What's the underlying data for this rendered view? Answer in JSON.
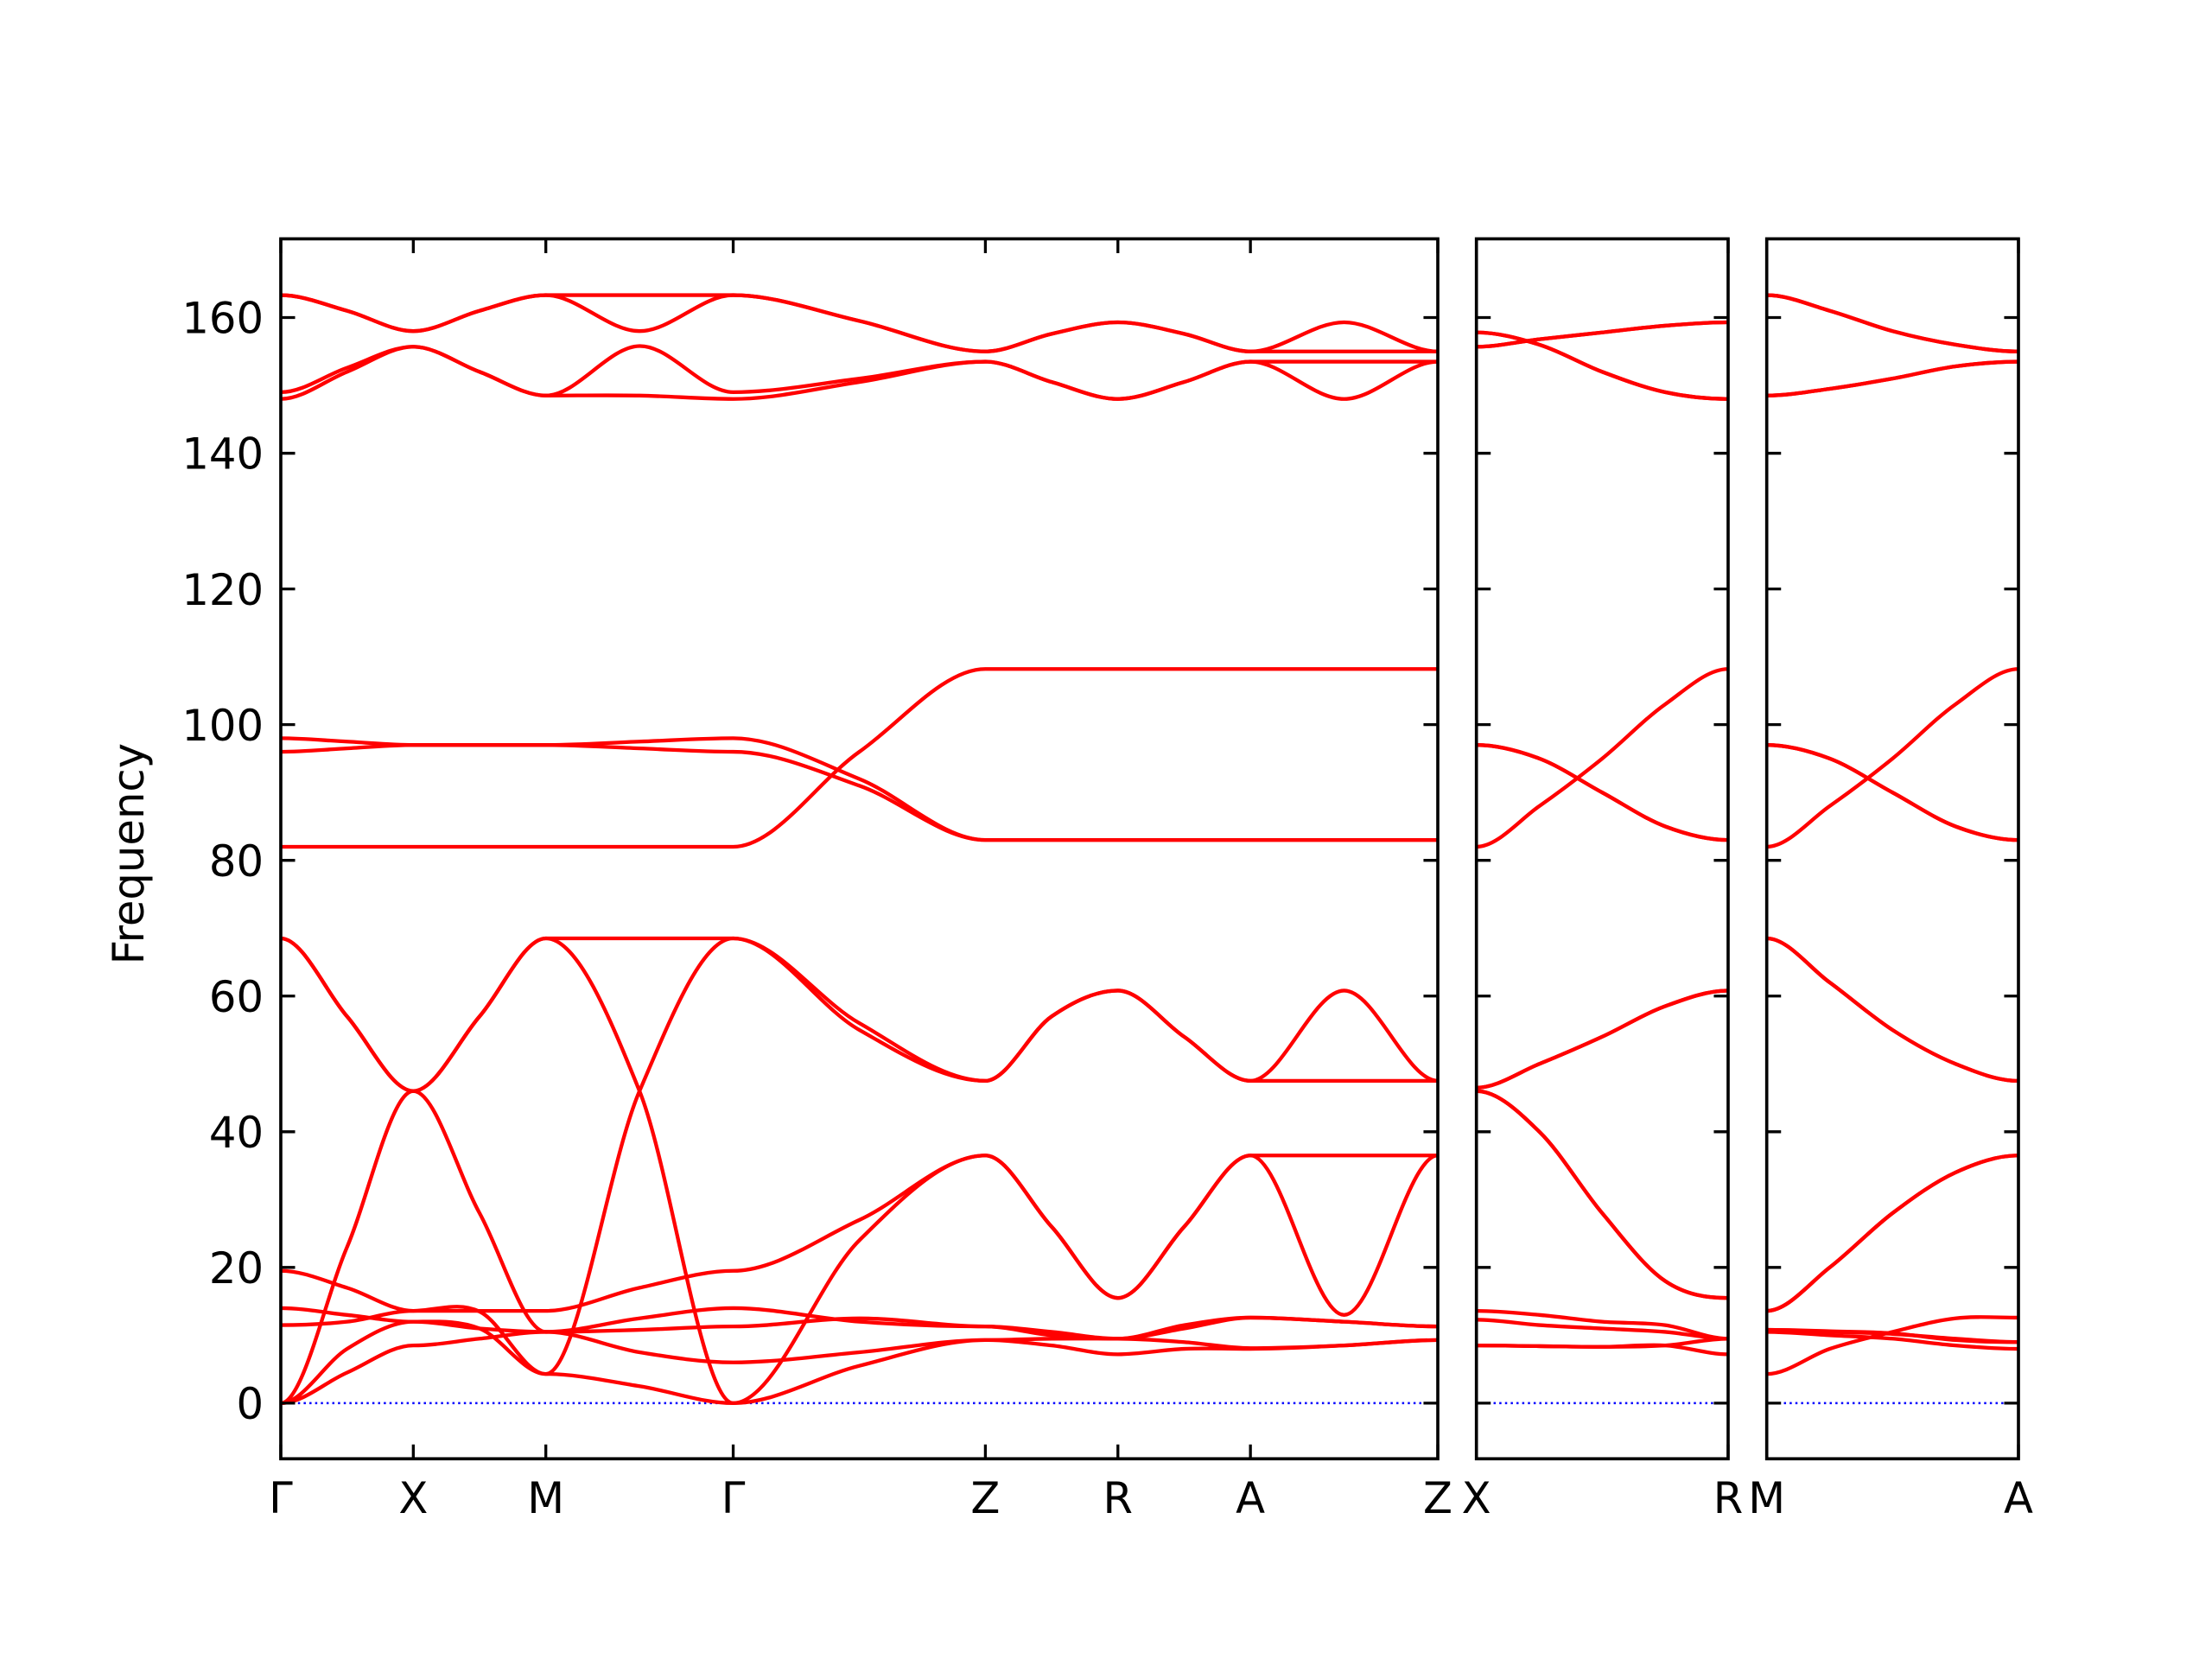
{
  "chart_data": [
    {
      "type": "line",
      "ylabel": "Frequency",
      "color": "#ff0000",
      "hline": 0,
      "hline_color": "#0000ff",
      "xlim": [
        0,
        8.731
      ],
      "ylim": [
        -8.2,
        171.6
      ],
      "xticks": [
        {
          "value": 0,
          "label": "Γ"
        },
        {
          "value": 1,
          "label": "X"
        },
        {
          "value": 2,
          "label": "M"
        },
        {
          "value": 3.414,
          "label": "Γ"
        },
        {
          "value": 5.317,
          "label": "Z"
        },
        {
          "value": 6.317,
          "label": "R"
        },
        {
          "value": 7.317,
          "label": "A"
        },
        {
          "value": 8.731,
          "label": "Z"
        }
      ],
      "yticks": [
        0,
        20,
        40,
        60,
        80,
        100,
        120,
        140,
        160
      ],
      "x": [
        0,
        0.5,
        1,
        1.5,
        2,
        2.707,
        3.414,
        4.366,
        5.317,
        5.817,
        6.317,
        6.817,
        7.317,
        8.024,
        8.731
      ],
      "series": [
        {
          "values": [
            163.3,
            161,
            158,
            161,
            163.3,
            163.3,
            163.3,
            159.5,
            155,
            157.6,
            159.3,
            157.6,
            155,
            155,
            155
          ]
        },
        {
          "values": [
            163.3,
            161,
            158,
            161,
            163.3,
            158,
            163.3,
            159.5,
            155,
            157.6,
            159.3,
            157.6,
            155,
            159.3,
            155
          ]
        },
        {
          "values": [
            149,
            152.6,
            155.7,
            152,
            148.5,
            155.8,
            149,
            151,
            153.5,
            150.5,
            148,
            150.5,
            153.5,
            153.5,
            153.5
          ]
        },
        {
          "values": [
            148,
            152,
            155.7,
            152,
            148.5,
            148.5,
            148,
            150.5,
            153.5,
            150.5,
            148,
            150.5,
            153.5,
            148,
            153.5
          ]
        },
        {
          "values": [
            82,
            82,
            82,
            82,
            82,
            82,
            82,
            96,
            108.2,
            108.2,
            108.2,
            108.2,
            108.2,
            108.2,
            108.2
          ]
        },
        {
          "values": [
            96,
            96.5,
            97,
            97,
            97,
            96.5,
            96,
            91,
            83,
            83,
            83,
            83,
            83,
            83,
            83
          ]
        },
        {
          "values": [
            98,
            97.5,
            97,
            97,
            97,
            97.5,
            98,
            92,
            83,
            83,
            83,
            83,
            83,
            83,
            83
          ]
        },
        {
          "values": [
            68.5,
            57,
            46,
            28,
            10.5,
            10.8,
            11.3,
            12.5,
            11.3,
            10,
            9.5,
            11,
            12.6,
            12,
            11.3
          ]
        },
        {
          "values": [
            0,
            23,
            46,
            57,
            68.5,
            68.5,
            68.5,
            55,
            47.5,
            57,
            60.8,
            54,
            47.5,
            60.8,
            47.5
          ]
        },
        {
          "values": [
            68.5,
            57,
            46,
            57,
            68.5,
            46,
            0,
            24,
            36.5,
            26,
            15.5,
            26,
            36.5,
            13,
            36.5
          ]
        },
        {
          "values": [
            19.5,
            17,
            13.6,
            13.5,
            4.3,
            46,
            68.5,
            56,
            47.5,
            57,
            60.8,
            54,
            47.5,
            47.5,
            47.5
          ]
        },
        {
          "values": [
            0,
            4.5,
            8.5,
            9.5,
            10.5,
            7.5,
            6,
            7.5,
            9.3,
            9.5,
            9.5,
            9,
            8.1,
            8.5,
            9.3
          ]
        },
        {
          "values": [
            0,
            8,
            12,
            11,
            4.3,
            2.5,
            0,
            5.5,
            9.3,
            8.5,
            7.2,
            8,
            8,
            8.5,
            9.3
          ]
        },
        {
          "values": [
            11.5,
            12,
            13.6,
            13.6,
            13.6,
            17,
            19.5,
            27,
            36.5,
            26,
            15.5,
            26,
            36.5,
            36.5,
            36.5
          ]
        },
        {
          "values": [
            14,
            13,
            12,
            11,
            10.5,
            12.5,
            14,
            12,
            11.3,
            10.5,
            9.5,
            11.5,
            12.6,
            12,
            11.3
          ]
        }
      ]
    },
    {
      "type": "line",
      "color": "#ff0000",
      "hline": 0,
      "hline_color": "#0000ff",
      "xlim": [
        0,
        1.903
      ],
      "ylim": [
        -8.2,
        171.6
      ],
      "xticks": [
        {
          "value": 0,
          "label": "X"
        },
        {
          "value": 1.903,
          "label": "R"
        }
      ],
      "yticks": [
        0,
        20,
        40,
        60,
        80,
        100,
        120,
        140,
        160
      ],
      "x": [
        0,
        0.476,
        0.951,
        1.427,
        1.903
      ],
      "series": [
        {
          "values": [
            155.7,
            156.8,
            157.8,
            158.8,
            159.3
          ]
        },
        {
          "values": [
            155.7,
            156.8,
            157.8,
            158.8,
            159.3
          ]
        },
        {
          "values": [
            157.8,
            156,
            152,
            149,
            148
          ]
        },
        {
          "values": [
            157.8,
            156,
            152,
            149,
            148
          ]
        },
        {
          "values": [
            82,
            88,
            95,
            103,
            108.2
          ]
        },
        {
          "values": [
            97,
            95,
            90,
            85,
            83
          ]
        },
        {
          "values": [
            97,
            95,
            90,
            85,
            83
          ]
        },
        {
          "values": [
            13.6,
            13,
            12,
            11.5,
            9.5
          ]
        },
        {
          "values": [
            46.5,
            50,
            54,
            58.5,
            60.8
          ]
        },
        {
          "values": [
            46,
            40,
            28,
            18,
            15.5
          ]
        },
        {
          "values": [
            46.5,
            50,
            54,
            58.5,
            60.8
          ]
        },
        {
          "values": [
            8.5,
            8.4,
            8.3,
            8.5,
            9.5
          ]
        },
        {
          "values": [
            8.5,
            8.4,
            8.3,
            8.5,
            7.2
          ]
        },
        {
          "values": [
            46,
            40,
            28,
            18,
            15.5
          ]
        },
        {
          "values": [
            12.3,
            11.5,
            11,
            10.5,
            9.5
          ]
        }
      ]
    },
    {
      "type": "line",
      "color": "#ff0000",
      "hline": 0,
      "hline_color": "#0000ff",
      "xlim": [
        0,
        1.903
      ],
      "ylim": [
        -8.2,
        171.6
      ],
      "xticks": [
        {
          "value": 0,
          "label": "M"
        },
        {
          "value": 1.903,
          "label": "A"
        }
      ],
      "yticks": [
        0,
        20,
        40,
        60,
        80,
        100,
        120,
        140,
        160
      ],
      "x": [
        0,
        0.476,
        0.951,
        1.427,
        1.903
      ],
      "series": [
        {
          "values": [
            163.3,
            161,
            158,
            156,
            155
          ]
        },
        {
          "values": [
            163.3,
            161,
            158,
            156,
            155
          ]
        },
        {
          "values": [
            148.5,
            149.5,
            151,
            152.8,
            153.5
          ]
        },
        {
          "values": [
            148.5,
            149.5,
            151,
            152.8,
            153.5
          ]
        },
        {
          "values": [
            82,
            88,
            95,
            103,
            108.2
          ]
        },
        {
          "values": [
            97,
            95,
            90,
            85,
            83
          ]
        },
        {
          "values": [
            97,
            95,
            90,
            85,
            83
          ]
        },
        {
          "values": [
            68.5,
            62,
            55,
            50,
            47.5
          ]
        },
        {
          "values": [
            68.5,
            62,
            55,
            50,
            47.5
          ]
        },
        {
          "values": [
            13.6,
            20,
            28,
            34,
            36.5
          ]
        },
        {
          "values": [
            4.3,
            8,
            10.5,
            12.5,
            12.6
          ]
        },
        {
          "values": [
            10.8,
            10.5,
            10.2,
            9.5,
            9
          ]
        },
        {
          "values": [
            10.5,
            10,
            9.5,
            8.5,
            8
          ]
        },
        {
          "values": [
            13.6,
            20,
            28,
            34,
            36.5
          ]
        },
        {
          "values": [
            10.8,
            10.6,
            10.3,
            9.3,
            9
          ]
        }
      ]
    }
  ]
}
